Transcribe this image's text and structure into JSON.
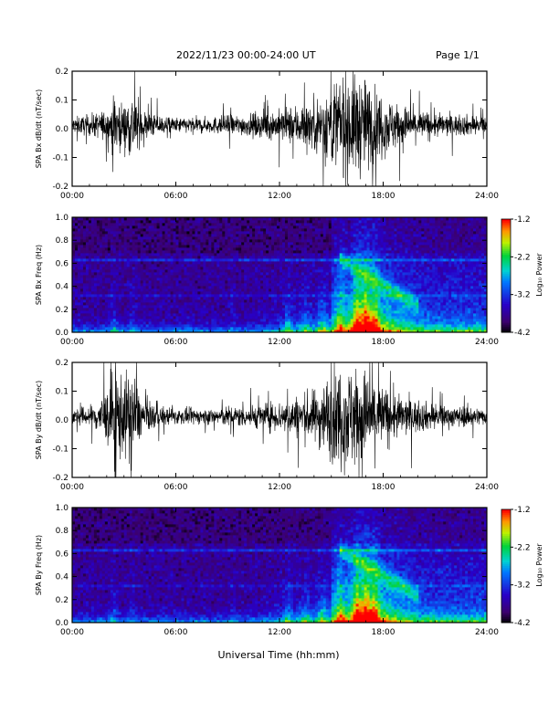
{
  "header": {
    "title": "2022/11/23  00:00-24:00 UT",
    "page": "Page 1/1"
  },
  "chart_data": [
    {
      "type": "line",
      "ylabel": "SPA Bx dB/dt (nT/sec)",
      "ylim": [
        -0.2,
        0.2
      ],
      "yticks": [
        "-0.2",
        "-0.1",
        "0.0",
        "0.1",
        "0.2"
      ],
      "xlim": [
        0,
        24
      ],
      "xticks": [
        "00:00",
        "06:00",
        "12:00",
        "18:00",
        "24:00"
      ],
      "envelope": {
        "x_hours": [
          0,
          1,
          2,
          2.5,
          3,
          3.5,
          4,
          5,
          6,
          7,
          8,
          9,
          10,
          11,
          12,
          13,
          14,
          15,
          15.5,
          16,
          16.5,
          17,
          17.5,
          18,
          19,
          20,
          21,
          22,
          23,
          24
        ],
        "amplitude": [
          0.03,
          0.04,
          0.06,
          0.12,
          0.08,
          0.14,
          0.06,
          0.04,
          0.03,
          0.03,
          0.03,
          0.04,
          0.04,
          0.05,
          0.06,
          0.08,
          0.1,
          0.16,
          0.2,
          0.2,
          0.2,
          0.18,
          0.15,
          0.12,
          0.08,
          0.06,
          0.05,
          0.04,
          0.04,
          0.03
        ]
      }
    },
    {
      "type": "heatmap",
      "ylabel": "SPA Bx Freq (Hz)",
      "ylim": [
        0.0,
        1.0
      ],
      "yticks": [
        "0.0",
        "0.2",
        "0.4",
        "0.6",
        "0.8",
        "1.0"
      ],
      "xlim": [
        0,
        24
      ],
      "xticks": [
        "00:00",
        "06:00",
        "12:00",
        "18:00",
        "24:00"
      ],
      "colorbar": {
        "label": "Log₁₀ Power",
        "ticks": [
          "-1.2",
          "-2.2",
          "-3.2",
          "-4.2"
        ],
        "range": [
          -4.2,
          -1.2
        ]
      }
    },
    {
      "type": "line",
      "ylabel": "SPA By dB/dt (nT/sec)",
      "ylim": [
        -0.2,
        0.2
      ],
      "yticks": [
        "-0.2",
        "-0.1",
        "0.0",
        "0.1",
        "0.2"
      ],
      "xlim": [
        0,
        24
      ],
      "xticks": [
        "00:00",
        "06:00",
        "12:00",
        "18:00",
        "24:00"
      ],
      "envelope": {
        "x_hours": [
          0,
          1,
          2,
          2.5,
          3,
          3.5,
          4,
          5,
          6,
          7,
          8,
          9,
          10,
          11,
          12,
          13,
          14,
          15,
          15.5,
          16,
          16.5,
          17,
          17.5,
          18,
          19,
          20,
          21,
          22,
          23,
          24
        ],
        "amplitude": [
          0.03,
          0.04,
          0.1,
          0.2,
          0.15,
          0.2,
          0.07,
          0.04,
          0.03,
          0.03,
          0.03,
          0.04,
          0.04,
          0.05,
          0.06,
          0.08,
          0.1,
          0.17,
          0.2,
          0.2,
          0.2,
          0.18,
          0.16,
          0.12,
          0.08,
          0.06,
          0.05,
          0.04,
          0.04,
          0.03
        ]
      }
    },
    {
      "type": "heatmap",
      "ylabel": "SPA By Freq (Hz)",
      "ylim": [
        0.0,
        1.0
      ],
      "yticks": [
        "0.0",
        "0.2",
        "0.4",
        "0.6",
        "0.8",
        "1.0"
      ],
      "xlim": [
        0,
        24
      ],
      "xticks": [
        "00:00",
        "06:00",
        "12:00",
        "18:00",
        "24:00"
      ],
      "colorbar": {
        "label": "Log₁₀ Power",
        "ticks": [
          "-1.2",
          "-2.2",
          "-3.2",
          "-4.2"
        ],
        "range": [
          -4.2,
          -1.2
        ]
      }
    }
  ],
  "xlabel": "Universal Time (hh:mm)"
}
